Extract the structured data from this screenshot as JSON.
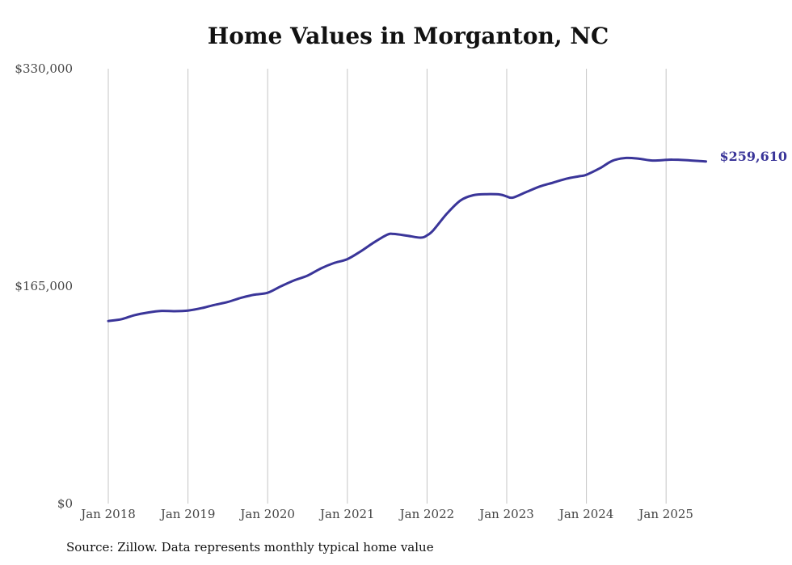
{
  "chart_data": {
    "type": "line",
    "title": "Home Values in Morganton, NC",
    "xlabel": "",
    "ylabel": "",
    "ylim": [
      0,
      330000
    ],
    "y_ticks": [
      "$0",
      "$165,000",
      "$330,000"
    ],
    "x_ticks": [
      "Jan 2018",
      "Jan 2019",
      "Jan 2020",
      "Jan 2021",
      "Jan 2022",
      "Jan 2023",
      "Jan 2024",
      "Jan 2025"
    ],
    "grid": "vertical",
    "end_label": "$259,610",
    "series": [
      {
        "color": "#3a3599",
        "x": [
          2018.0,
          2018.17,
          2018.33,
          2018.5,
          2018.67,
          2018.83,
          2019.0,
          2019.17,
          2019.33,
          2019.5,
          2019.67,
          2019.83,
          2020.0,
          2020.17,
          2020.33,
          2020.5,
          2020.67,
          2020.83,
          2021.0,
          2021.17,
          2021.33,
          2021.5,
          2021.58,
          2021.75,
          2021.92,
          2022.0,
          2022.08,
          2022.25,
          2022.42,
          2022.58,
          2022.75,
          2022.92,
          2023.0,
          2023.08,
          2023.25,
          2023.42,
          2023.58,
          2023.75,
          2023.92,
          2024.0,
          2024.17,
          2024.33,
          2024.5,
          2024.67,
          2024.83,
          2025.0,
          2025.08,
          2025.25,
          2025.42,
          2025.5
        ],
        "values": [
          138500,
          140000,
          143000,
          145000,
          146200,
          146000,
          146500,
          148300,
          150700,
          153000,
          156200,
          158500,
          160000,
          165000,
          169300,
          173000,
          178500,
          182500,
          185500,
          191500,
          198000,
          204000,
          204600,
          203300,
          201800,
          203500,
          207500,
          220000,
          230000,
          234000,
          234800,
          234500,
          233000,
          232200,
          236500,
          240700,
          243500,
          246500,
          248500,
          249500,
          254500,
          260200,
          262300,
          261600,
          260300,
          260800,
          261000,
          260600,
          259900,
          259610
        ]
      }
    ]
  },
  "footer": {
    "source": "Source: Zillow. Data represents monthly typical home value"
  }
}
